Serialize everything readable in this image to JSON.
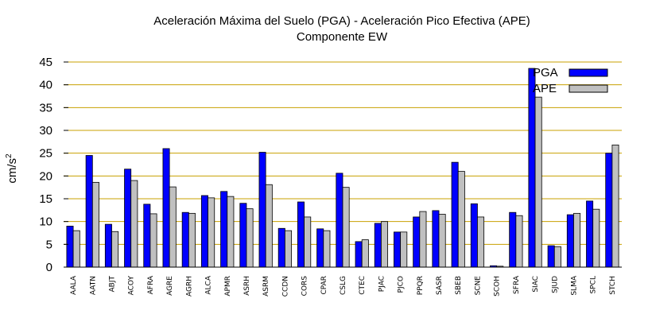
{
  "chart_data": {
    "type": "bar",
    "title": "Aceleración Máxima del Suelo (PGA) -  Aceleración Pico Efectiva (APE)",
    "subtitle": "Componente EW",
    "xlabel": "",
    "ylabel": "cm/s",
    "ylabel_superscript": "2",
    "ylim": [
      0,
      45
    ],
    "yticks": [
      0,
      5,
      10,
      15,
      20,
      25,
      30,
      35,
      40,
      45
    ],
    "grid": true,
    "legend_position": "top-right",
    "categories": [
      "AALA",
      "AATN",
      "ABJT",
      "ACOY",
      "AFRA",
      "AGRE",
      "AGRH",
      "ALCA",
      "APMR",
      "ASRH",
      "ASRM",
      "CCDN",
      "CORS",
      "CPAR",
      "CSLG",
      "CTEC",
      "PJAC",
      "PJCO",
      "PPQR",
      "SASR",
      "SBEB",
      "SCNE",
      "SCOH",
      "SFRA",
      "SIAC",
      "SJUD",
      "SLMA",
      "SPCL",
      "STCH"
    ],
    "series": [
      {
        "name": "PGA",
        "color": "#0000ff",
        "values": [
          9.0,
          24.5,
          9.4,
          21.5,
          13.8,
          26.0,
          12.0,
          15.7,
          16.6,
          14.0,
          25.2,
          8.5,
          14.3,
          8.4,
          20.6,
          5.6,
          9.6,
          7.7,
          11.0,
          12.4,
          23.0,
          13.9,
          0.3,
          12.0,
          43.6,
          4.7,
          11.5,
          14.5,
          25.0
        ]
      },
      {
        "name": "APE",
        "color": "#c0c0c0",
        "values": [
          8.0,
          18.6,
          7.8,
          19.0,
          11.7,
          17.6,
          11.8,
          15.2,
          15.5,
          12.8,
          18.1,
          8.0,
          11.0,
          8.0,
          17.5,
          6.0,
          10.0,
          7.7,
          12.2,
          11.6,
          21.0,
          11.0,
          0.2,
          11.3,
          37.3,
          4.5,
          11.8,
          12.7,
          26.8
        ]
      }
    ],
    "colors": {
      "grid": "#c8a000",
      "axis": "#000000"
    }
  }
}
